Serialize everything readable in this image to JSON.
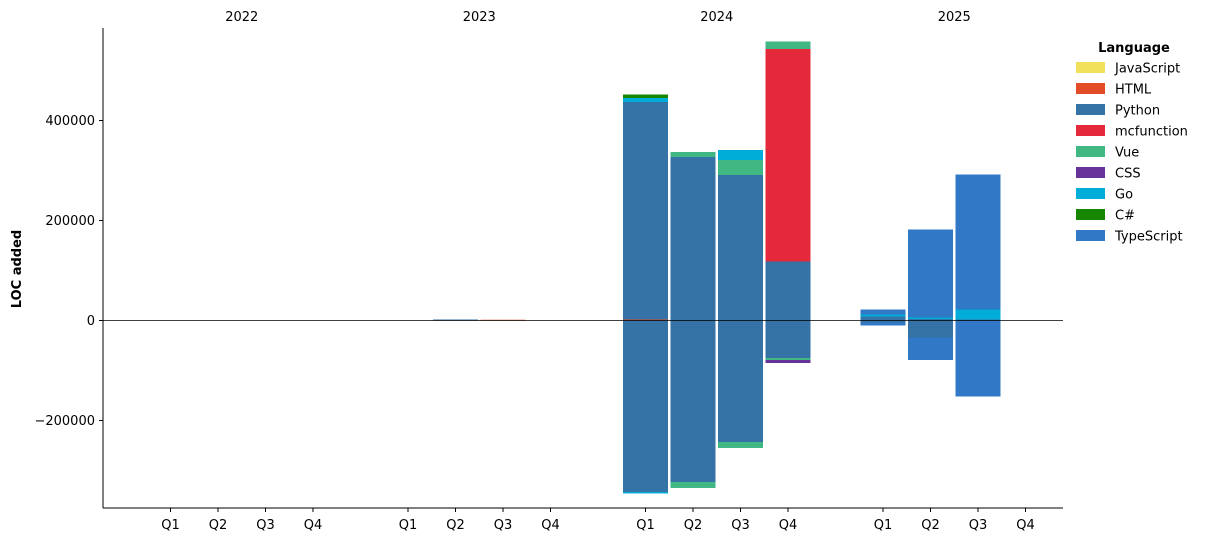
{
  "chart_data": {
    "type": "bar",
    "stacked": true,
    "title": "",
    "ylabel": "LOC added",
    "xlabel": "",
    "ylim": [
      -375000,
      585000
    ],
    "yticks": [
      -200000,
      0,
      200000,
      400000
    ],
    "ytick_labels": [
      "−200000",
      "0",
      "200000",
      "400000"
    ],
    "year_labels": [
      "2022",
      "2023",
      "2024",
      "2025"
    ],
    "quarter_labels": [
      "Q1",
      "Q2",
      "Q3",
      "Q4"
    ],
    "zero_line": true,
    "grid": false,
    "legend": {
      "title": "Language",
      "placement": "top-right"
    },
    "series": [
      {
        "name": "JavaScript",
        "color": "#f1e05a"
      },
      {
        "name": "HTML",
        "color": "#e34c26"
      },
      {
        "name": "Python",
        "color": "#3572a5"
      },
      {
        "name": "mcfunction",
        "color": "#e3293a"
      },
      {
        "name": "Vue",
        "color": "#41b883"
      },
      {
        "name": "CSS",
        "color": "#663399"
      },
      {
        "name": "Go",
        "color": "#00add8"
      },
      {
        "name": "C#",
        "color": "#178600"
      },
      {
        "name": "TypeScript",
        "color": "#3178c6"
      }
    ],
    "bars": [
      {
        "year": "2023",
        "quarter": "Q2",
        "positive": [
          {
            "series": "Python",
            "value": 2000
          }
        ],
        "negative": []
      },
      {
        "year": "2023",
        "quarter": "Q3",
        "positive": [
          {
            "series": "HTML",
            "value": 1500
          }
        ],
        "negative": []
      },
      {
        "year": "2024",
        "quarter": "Q1",
        "positive": [
          {
            "series": "HTML",
            "value": 2000
          },
          {
            "series": "Python",
            "value": 435000
          },
          {
            "series": "Go",
            "value": 8000
          },
          {
            "series": "C#",
            "value": 7000
          }
        ],
        "negative": [
          {
            "series": "Python",
            "value": -343000
          },
          {
            "series": "Go",
            "value": -3000
          }
        ]
      },
      {
        "year": "2024",
        "quarter": "Q2",
        "positive": [
          {
            "series": "Python",
            "value": 327000
          },
          {
            "series": "Vue",
            "value": 10000
          }
        ],
        "negative": [
          {
            "series": "Python",
            "value": -323000
          },
          {
            "series": "Vue",
            "value": -12000
          }
        ]
      },
      {
        "year": "2024",
        "quarter": "Q3",
        "positive": [
          {
            "series": "Python",
            "value": 291000
          },
          {
            "series": "Vue",
            "value": 30000
          },
          {
            "series": "Go",
            "value": 20000
          }
        ],
        "negative": [
          {
            "series": "Python",
            "value": -243000
          },
          {
            "series": "Vue",
            "value": -12000
          }
        ]
      },
      {
        "year": "2024",
        "quarter": "Q4",
        "positive": [
          {
            "series": "Python",
            "value": 118000
          },
          {
            "series": "mcfunction",
            "value": 425000
          },
          {
            "series": "Vue",
            "value": 15000
          }
        ],
        "negative": [
          {
            "series": "Python",
            "value": -75000
          },
          {
            "series": "Vue",
            "value": -4000
          },
          {
            "series": "CSS",
            "value": -6000
          }
        ]
      },
      {
        "year": "2025",
        "quarter": "Q1",
        "positive": [
          {
            "series": "Python",
            "value": 8000
          },
          {
            "series": "Go",
            "value": 4000
          },
          {
            "series": "TypeScript",
            "value": 10000
          }
        ],
        "negative": [
          {
            "series": "Python",
            "value": -4000
          },
          {
            "series": "TypeScript",
            "value": -6000
          }
        ]
      },
      {
        "year": "2025",
        "quarter": "Q2",
        "positive": [
          {
            "series": "Python",
            "value": 3000
          },
          {
            "series": "Go",
            "value": 3000
          },
          {
            "series": "TypeScript",
            "value": 176000
          }
        ],
        "negative": [
          {
            "series": "Python",
            "value": -34000
          },
          {
            "series": "TypeScript",
            "value": -45000
          }
        ]
      },
      {
        "year": "2025",
        "quarter": "Q3",
        "positive": [
          {
            "series": "Python",
            "value": 2000
          },
          {
            "series": "Go",
            "value": 20000
          },
          {
            "series": "TypeScript",
            "value": 270000
          }
        ],
        "negative": [
          {
            "series": "Python",
            "value": -1000
          },
          {
            "series": "TypeScript",
            "value": -151000
          }
        ]
      }
    ]
  }
}
